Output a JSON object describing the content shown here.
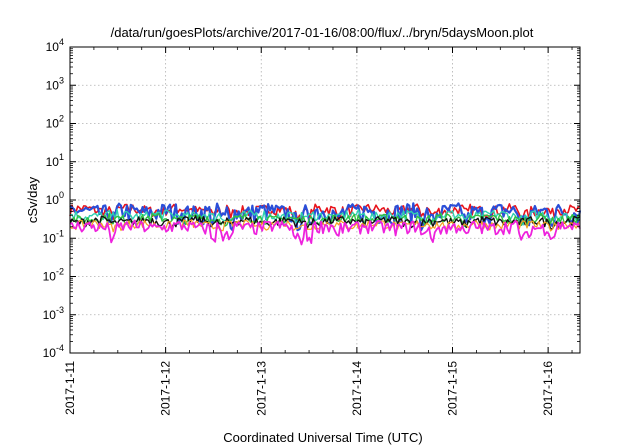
{
  "chart_data": {
    "type": "line",
    "title": "/data/run/goesPlots/archive/2017-01-16/08:00/flux/../bryn/5daysMoon.plot",
    "xlabel": "Coordinated Universal Time (UTC)",
    "ylabel": "cSv/day",
    "y_scale": "log",
    "ylim": [
      0.0001,
      10000
    ],
    "xlim": [
      "2017-01-11T00:00",
      "2017-01-16T08:00"
    ],
    "x_ticks": [
      "2017-1-11",
      "2017-1-12",
      "2017-1-13",
      "2017-1-14",
      "2017-1-15",
      "2017-1-16"
    ],
    "y_ticks": [
      {
        "base": "10",
        "exp": "-4"
      },
      {
        "base": "10",
        "exp": "-3"
      },
      {
        "base": "10",
        "exp": "-2"
      },
      {
        "base": "10",
        "exp": "-1"
      },
      {
        "base": "10",
        "exp": "0"
      },
      {
        "base": "10",
        "exp": "1"
      },
      {
        "base": "10",
        "exp": "2"
      },
      {
        "base": "10",
        "exp": "3"
      },
      {
        "base": "10",
        "exp": "4"
      }
    ],
    "grid": true,
    "legend": "none",
    "series": [
      {
        "color": "#e8141c",
        "base": 0.56,
        "noise": 0.06,
        "dip": 0.78,
        "width": 1.6
      },
      {
        "color": "#2a4ed8",
        "base": 0.5,
        "noise": 0.09,
        "dip": 0.65,
        "width": 2.2
      },
      {
        "color": "#2fd0b0",
        "base": 0.4,
        "noise": 0.04,
        "dip": 0.85,
        "width": 1.4
      },
      {
        "color": "#2fc040",
        "base": 0.33,
        "noise": 0.03,
        "dip": 0.88,
        "width": 1.4
      },
      {
        "color": "#111111",
        "base": 0.28,
        "noise": 0.025,
        "dip": 0.9,
        "width": 1.4
      },
      {
        "color": "#f4a020",
        "base": 0.23,
        "noise": 0.02,
        "dip": 0.92,
        "width": 1.2
      },
      {
        "color": "#ee22dd",
        "base": 0.2,
        "noise": 0.025,
        "dip": 0.55,
        "width": 1.8
      }
    ]
  }
}
